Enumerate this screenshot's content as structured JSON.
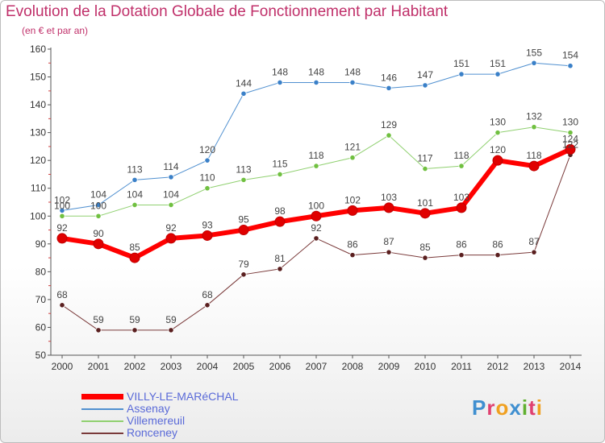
{
  "header": {
    "title": "Evolution de la Dotation Globale de Fonctionnement par Habitant",
    "subtitle": "(en € et par an)"
  },
  "logo": {
    "text": "Proxiti",
    "letters": [
      "P",
      "r",
      "o",
      "x",
      "i",
      "t",
      "i"
    ],
    "colors": [
      "#3f8fd0",
      "#e04070",
      "#f0a020",
      "#3f8fd0",
      "#60b030",
      "#e04070",
      "#f0a020"
    ]
  },
  "chart_data": {
    "type": "line",
    "title": "Evolution de la Dotation Globale de Fonctionnement par Habitant",
    "subtitle": "(en € et par an)",
    "xlabel": "",
    "ylabel": "",
    "ylim": [
      50,
      160
    ],
    "yticks": [
      50,
      60,
      70,
      80,
      90,
      100,
      110,
      120,
      130,
      140,
      150,
      160
    ],
    "categories": [
      "2000",
      "2001",
      "2002",
      "2003",
      "2004",
      "2005",
      "2006",
      "2007",
      "2008",
      "2009",
      "2010",
      "2011",
      "2012",
      "2013",
      "2014"
    ],
    "grid": false,
    "legend_position": "bottom-left",
    "series": [
      {
        "name": "Ronceney",
        "color": "#7a3a3a",
        "marker": "#5a1f1f",
        "width": 1,
        "values": [
          68,
          59,
          59,
          59,
          68,
          79,
          81,
          92,
          86,
          87,
          85,
          86,
          86,
          87,
          122
        ],
        "labels": [
          "68",
          "59",
          "59",
          "59",
          "68",
          "79",
          "81",
          "92",
          "86",
          "87",
          "85",
          "86",
          "86",
          "87",
          "122"
        ]
      },
      {
        "name": "Villemereuil",
        "color": "#90d070",
        "marker": "#70c040",
        "width": 1,
        "values": [
          100,
          100,
          104,
          104,
          110,
          113,
          115,
          118,
          121,
          129,
          117,
          118,
          130,
          132,
          130
        ],
        "labels": [
          "100",
          "100",
          "104",
          "104",
          "110",
          "113",
          "115",
          "118",
          "121",
          "129",
          "117",
          "118",
          "130",
          "132",
          "130"
        ]
      },
      {
        "name": "Assenay",
        "color": "#5090d0",
        "marker": "#3a80c8",
        "width": 1,
        "values": [
          102,
          104,
          113,
          114,
          120,
          144,
          148,
          148,
          148,
          146,
          147,
          151,
          151,
          155,
          154
        ],
        "labels": [
          "102",
          "104",
          "113",
          "114",
          "120",
          "144",
          "148",
          "148",
          "148",
          "146",
          "147",
          "151",
          "151",
          "155",
          "154"
        ]
      },
      {
        "name": "VILLY-LE-MARéCHAL",
        "color": "#ff0000",
        "marker": "#e00000",
        "width": 6,
        "values": [
          92,
          90,
          85,
          92,
          93,
          95,
          98,
          100,
          102,
          103,
          101,
          103,
          120,
          118,
          124
        ],
        "labels": [
          "92",
          "90",
          "85",
          "92",
          "93",
          "95",
          "98",
          "100",
          "102",
          "103",
          "101",
          "103",
          "120",
          "118",
          "124"
        ]
      }
    ],
    "legend": [
      {
        "name": "VILLY-LE-MARéCHAL",
        "color": "#ff0000"
      },
      {
        "name": "Assenay",
        "color": "#5090d0"
      },
      {
        "name": "Villemereuil",
        "color": "#90d070"
      },
      {
        "name": "Ronceney",
        "color": "#7a3a3a"
      }
    ]
  }
}
